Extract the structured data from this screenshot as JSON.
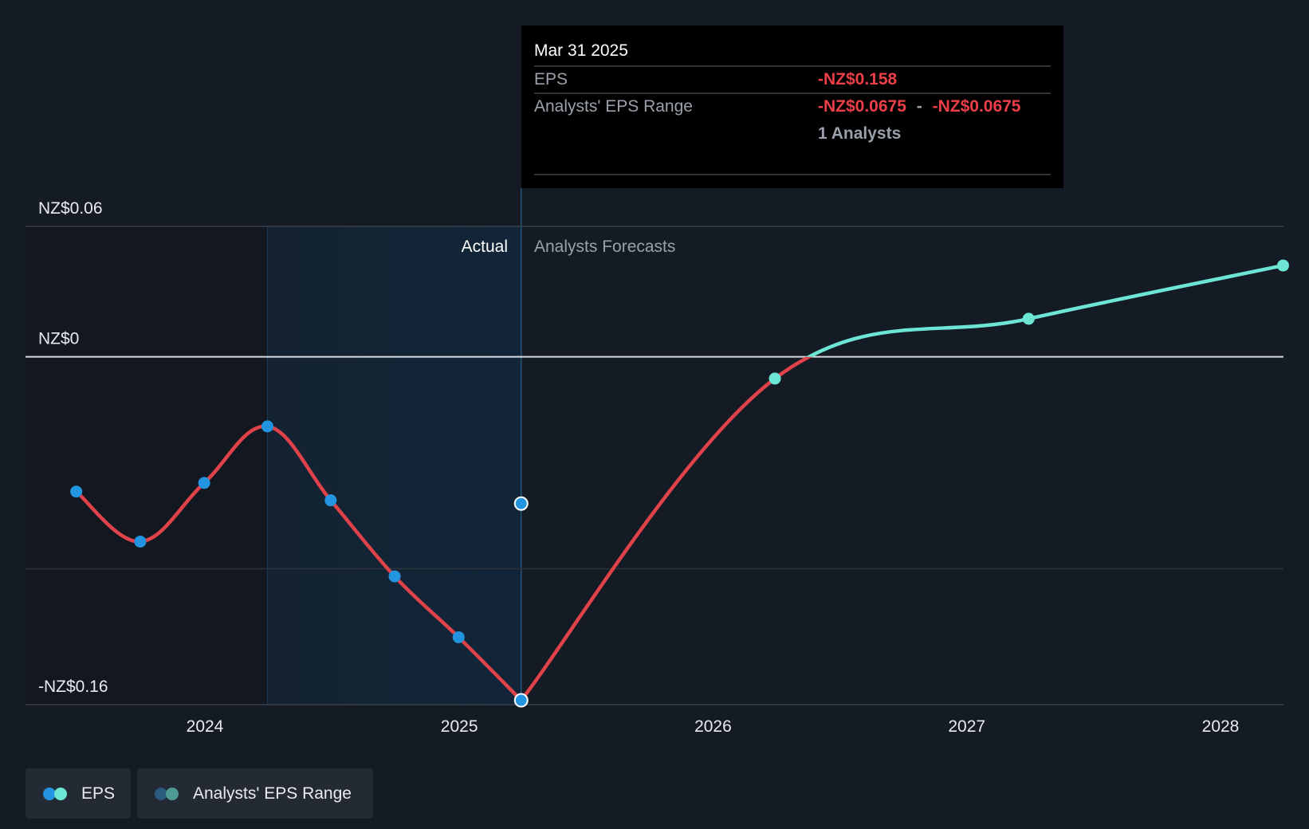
{
  "chart_data": {
    "type": "line",
    "title": "",
    "xlabel": "",
    "ylabel": "",
    "x_ticks": [
      "2024",
      "2025",
      "2026",
      "2027",
      "2028"
    ],
    "y_tick_labels": [
      "NZ$0.06",
      "NZ$0",
      "-NZ$0.16"
    ],
    "y_tick_values": [
      0.06,
      0,
      -0.16
    ],
    "ylim": [
      -0.16,
      0.06
    ],
    "region_labels": {
      "actual": "Actual",
      "forecast": "Analysts Forecasts"
    },
    "series": [
      {
        "name": "EPS",
        "role": "actual",
        "points": [
          [
            "2023-06-30",
            -0.062
          ],
          [
            "2023-09-30",
            -0.085
          ],
          [
            "2023-12-31",
            -0.058
          ],
          [
            "2024-03-31",
            -0.032
          ],
          [
            "2024-06-30",
            -0.066
          ],
          [
            "2024-09-30",
            -0.101
          ],
          [
            "2024-12-31",
            -0.129
          ],
          [
            "2025-03-31",
            -0.158
          ]
        ]
      },
      {
        "name": "EPS",
        "role": "forecast",
        "points": [
          [
            "2025-03-31",
            -0.158
          ],
          [
            "2026-03-31",
            -0.01
          ],
          [
            "2027-03-31",
            0.0175
          ],
          [
            "2028-03-31",
            0.042
          ]
        ]
      },
      {
        "name": "Analysts' EPS Range",
        "points": [
          [
            "2025-03-31",
            -0.0675
          ]
        ]
      }
    ],
    "tooltip": {
      "date": "Mar 31 2025",
      "eps_label": "EPS",
      "eps_value": "-NZ$0.158",
      "range_label": "Analysts' EPS Range",
      "range_low": "-NZ$0.0675",
      "range_sep": "-",
      "range_high": "-NZ$0.0675",
      "analysts": "1 Analysts"
    },
    "legend": [
      {
        "label": "EPS",
        "colors": [
          "#2394df",
          "#6ce5d4"
        ]
      },
      {
        "label": "Analysts' EPS Range",
        "colors": [
          "#2b5a7f",
          "#4f9a93"
        ]
      }
    ],
    "colors": {
      "background": "#151b24",
      "actual_band": "#122538",
      "past_shade": "#121720",
      "negative_line": "#e0424a",
      "positive_line": "#6ce5d4",
      "actual_dot": "#2394df",
      "grid": "#39404a",
      "zero_line": "#d8dce2",
      "text": "#e8ebef",
      "muted": "#9aa1aa",
      "negative_text": "#ec3f49"
    }
  }
}
